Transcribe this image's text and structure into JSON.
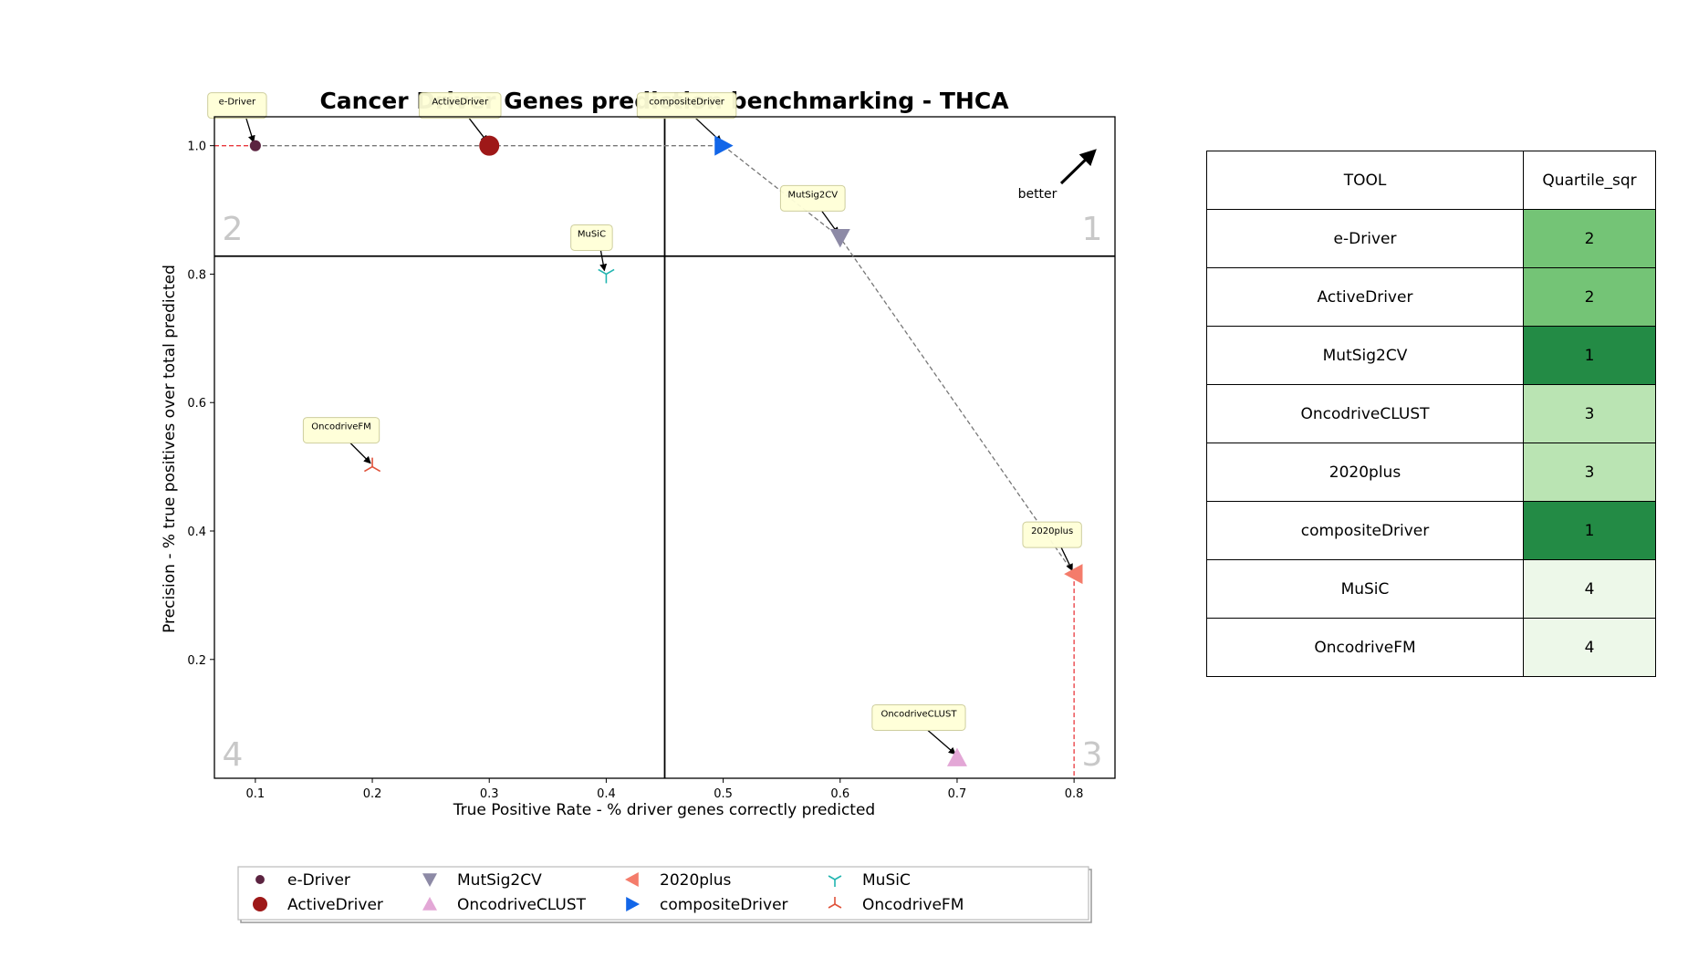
{
  "chart_data": {
    "type": "scatter",
    "title": "Cancer Driver Genes prediction benchmarking - THCA",
    "xlabel": "True Positive Rate - % driver genes correctly predicted",
    "ylabel": "Precision - % true positives over total predicted",
    "xlim": [
      0.065,
      0.835
    ],
    "ylim": [
      0.015,
      1.045
    ],
    "xticks": [
      "0.1",
      "0.2",
      "0.3",
      "0.4",
      "0.5",
      "0.6",
      "0.7",
      "0.8"
    ],
    "yticks": [
      "0.2",
      "0.4",
      "0.6",
      "0.8",
      "1.0"
    ],
    "grid": false,
    "legend_position": "bottom",
    "quadrant_split": {
      "x": 0.45,
      "y": 0.828
    },
    "quadrant_labels": [
      "1",
      "2",
      "3",
      "4"
    ],
    "better_label": "better",
    "pareto_front": [
      [
        0.1,
        1.0
      ],
      [
        0.3,
        1.0
      ],
      [
        0.5,
        1.0
      ],
      [
        0.6,
        0.857
      ],
      [
        0.8,
        0.333
      ]
    ],
    "series": [
      {
        "name": "e-Driver",
        "x": 0.1,
        "y": 1.0,
        "marker": "circle-small",
        "color": "#5b2340"
      },
      {
        "name": "ActiveDriver",
        "x": 0.3,
        "y": 1.0,
        "marker": "circle",
        "color": "#9e1818"
      },
      {
        "name": "MutSig2CV",
        "x": 0.6,
        "y": 0.857,
        "marker": "triangle-down",
        "color": "#8d8aa6"
      },
      {
        "name": "OncodriveCLUST",
        "x": 0.7,
        "y": 0.047,
        "marker": "triangle-up",
        "color": "#e3a7d6"
      },
      {
        "name": "2020plus",
        "x": 0.8,
        "y": 0.333,
        "marker": "triangle-left",
        "color": "#f47c6b"
      },
      {
        "name": "compositeDriver",
        "x": 0.5,
        "y": 1.0,
        "marker": "triangle-right",
        "color": "#1266e8"
      },
      {
        "name": "MuSiC",
        "x": 0.4,
        "y": 0.8,
        "marker": "tri-down",
        "color": "#22b5b0"
      },
      {
        "name": "OncodriveFM",
        "x": 0.2,
        "y": 0.5,
        "marker": "tri-up",
        "color": "#e0523a"
      }
    ]
  },
  "table": {
    "headers": [
      "TOOL",
      "Quartile_sqr"
    ],
    "rows": [
      {
        "tool": "e-Driver",
        "quartile": "2",
        "color": "#74c476"
      },
      {
        "tool": "ActiveDriver",
        "quartile": "2",
        "color": "#74c476"
      },
      {
        "tool": "MutSig2CV",
        "quartile": "1",
        "color": "#238b45"
      },
      {
        "tool": "OncodriveCLUST",
        "quartile": "3",
        "color": "#bae4b3"
      },
      {
        "tool": "2020plus",
        "quartile": "3",
        "color": "#bae4b3"
      },
      {
        "tool": "compositeDriver",
        "quartile": "1",
        "color": "#238b45"
      },
      {
        "tool": "MuSiC",
        "quartile": "4",
        "color": "#edf8e9"
      },
      {
        "tool": "OncodriveFM",
        "quartile": "4",
        "color": "#edf8e9"
      }
    ]
  }
}
